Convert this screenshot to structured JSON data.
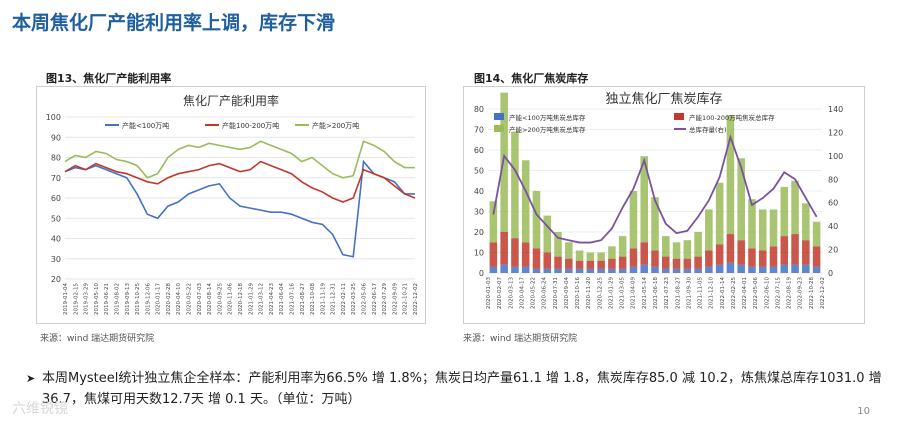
{
  "slide_title": "本周焦化厂产能利用率上调，库存下滑",
  "figure_left": {
    "caption": "图13、焦化厂产能利用率",
    "source": "来源：wind   瑞达期货研究院"
  },
  "figure_right": {
    "caption": "图14、焦化厂焦炭库存",
    "source": "来源：wind   瑞达期货研究院"
  },
  "summary_text": "本周Mysteel统计独立焦企全样本：产能利用率为66.5% 增 1.8%；焦炭日均产量61.1 增 1.8，焦炭库存85.0 减 10.2，炼焦煤总库存1031.0 增 36.7，焦煤可用天数12.7天 增 0.1 天。（单位：万吨）",
  "bullet_symbol": "➤",
  "watermark": "六维锐镜",
  "page_number": "10",
  "colors": {
    "blue": "#4472c4",
    "red": "#c0392b",
    "green": "#9bbb59",
    "purple": "#7a52a0",
    "title_blue": "#1f5f9e"
  },
  "chart_data": [
    {
      "type": "line",
      "title": "焦化厂产能利用率",
      "ylim": [
        20,
        100
      ],
      "yticks": [
        "20",
        "30",
        "40",
        "50",
        "60",
        "70",
        "80",
        "90",
        "100"
      ],
      "x_ticks": [
        "2019-01-04",
        "2019-02-15",
        "2019-03-29",
        "2019-05-10",
        "2019-06-21",
        "2019-08-02",
        "2019-09-13",
        "2019-10-25",
        "2019-12-06",
        "2020-01-17",
        "2020-02-28",
        "2020-04-10",
        "2020-05-22",
        "2020-07-03",
        "2020-08-14",
        "2020-09-25",
        "2020-11-06",
        "2020-12-18",
        "2021-01-29",
        "2021-03-12",
        "2021-04-23",
        "2021-06-04",
        "2021-07-16",
        "2021-08-27",
        "2021-10-08",
        "2021-11-19",
        "2021-12-31",
        "2022-02-11",
        "2022-03-25",
        "2022-05-06",
        "2022-06-17",
        "2022-07-29",
        "2022-09-09",
        "2022-10-21",
        "2022-12-02"
      ],
      "series": [
        {
          "name": "产能<100万吨",
          "color": "#4472c4",
          "values": [
            73,
            75,
            74,
            76,
            74,
            72,
            70,
            62,
            52,
            50,
            56,
            58,
            62,
            64,
            66,
            67,
            60,
            56,
            55,
            54,
            53,
            53,
            52,
            50,
            48,
            47,
            42,
            32,
            31,
            78,
            72,
            70,
            68,
            62,
            62
          ]
        },
        {
          "name": "产能100-200万吨",
          "color": "#c0392b",
          "values": [
            73,
            76,
            74,
            77,
            75,
            73,
            72,
            70,
            68,
            67,
            70,
            72,
            73,
            74,
            76,
            77,
            75,
            73,
            74,
            78,
            76,
            74,
            72,
            68,
            65,
            63,
            60,
            58,
            60,
            74,
            72,
            70,
            66,
            62,
            60
          ]
        },
        {
          "name": "产能>200万吨",
          "color": "#9bbb59",
          "values": [
            78,
            81,
            80,
            83,
            82,
            79,
            78,
            76,
            70,
            72,
            80,
            84,
            86,
            85,
            87,
            86,
            85,
            84,
            85,
            88,
            86,
            84,
            82,
            78,
            80,
            76,
            72,
            70,
            71,
            88,
            86,
            83,
            78,
            75,
            75
          ]
        }
      ]
    },
    {
      "type": "bar+line",
      "title": "独立焦化厂焦炭库存",
      "y_left_lim": [
        0,
        80
      ],
      "y_left_ticks": [
        "0",
        "10",
        "20",
        "30",
        "40",
        "50",
        "60",
        "70",
        "80"
      ],
      "y_right_lim": [
        0,
        140
      ],
      "y_right_ticks": [
        "0",
        "20",
        "40",
        "60",
        "80",
        "100",
        "120",
        "140"
      ],
      "x_ticks": [
        "2020-01-03",
        "2020-02-07",
        "2020-03-13",
        "2020-04-17",
        "2020-05-22",
        "2020-06-24",
        "2020-07-31",
        "2020-09-04",
        "2020-10-16",
        "2020-11-20",
        "2020-12-25",
        "2021-01-29",
        "2021-03-05",
        "2021-04-09",
        "2021-05-14",
        "2021-06-18",
        "2021-07-23",
        "2021-08-27",
        "2021-09-30",
        "2021-11-05",
        "2021-12-10",
        "2022-01-14",
        "2022-02-25",
        "2022-04-01",
        "2022-05-06",
        "2022-06-10",
        "2022-07-15",
        "2022-08-19",
        "2022-09-23",
        "2022-10-28",
        "2022-12-02"
      ],
      "series": [
        {
          "name": "产能<100万吨焦炭总库存",
          "color": "#4472c4",
          "axis": "left",
          "values": [
            3,
            4,
            3,
            3,
            2,
            2,
            2,
            2,
            2,
            2,
            2,
            2,
            2,
            3,
            4,
            3,
            2,
            2,
            2,
            2,
            3,
            4,
            5,
            4,
            3,
            3,
            3,
            4,
            4,
            4,
            3
          ]
        },
        {
          "name": "产能100-200万吨焦炭总库存",
          "color": "#c0392b",
          "axis": "left",
          "values": [
            12,
            16,
            14,
            12,
            10,
            8,
            6,
            5,
            4,
            4,
            4,
            5,
            6,
            9,
            11,
            8,
            6,
            5,
            5,
            6,
            8,
            10,
            14,
            12,
            9,
            8,
            10,
            14,
            15,
            12,
            10
          ]
        },
        {
          "name": "产能>200万吨焦炭总库存",
          "color": "#9bbb59",
          "axis": "left",
          "values": [
            20,
            68,
            52,
            40,
            28,
            18,
            12,
            8,
            5,
            4,
            4,
            6,
            10,
            28,
            42,
            26,
            10,
            8,
            9,
            12,
            20,
            30,
            58,
            40,
            24,
            20,
            18,
            24,
            26,
            18,
            12
          ]
        },
        {
          "name": "总库存量(右)",
          "color": "#7a52a0",
          "axis": "right",
          "values": [
            50,
            100,
            88,
            70,
            50,
            40,
            30,
            28,
            26,
            26,
            28,
            38,
            56,
            72,
            96,
            62,
            42,
            34,
            36,
            48,
            62,
            82,
            116,
            90,
            58,
            64,
            72,
            86,
            80,
            64,
            48
          ]
        }
      ]
    }
  ]
}
